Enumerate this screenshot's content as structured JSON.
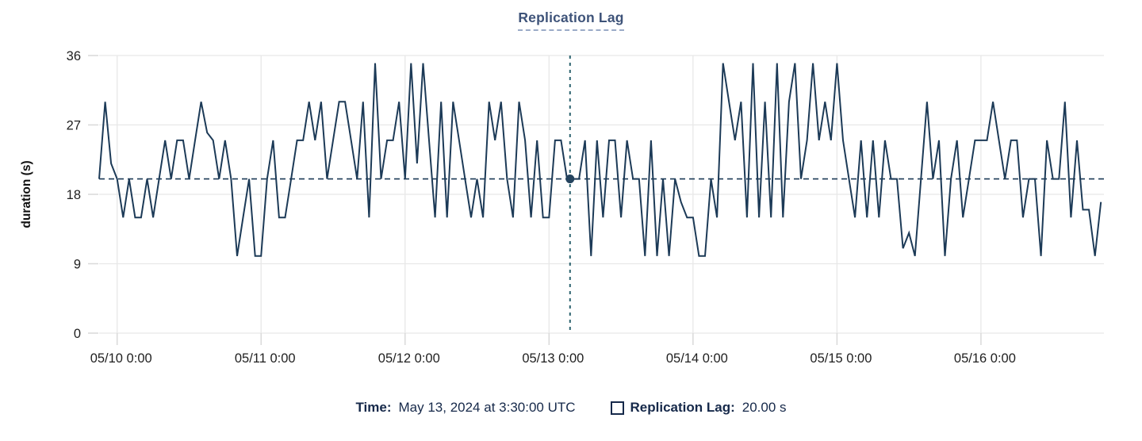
{
  "chart_data": {
    "type": "line",
    "title": "Replication Lag",
    "ylabel": "duration (s)",
    "xlabel": "",
    "ylim": [
      0,
      36
    ],
    "y_ticks": [
      0,
      9,
      18,
      27,
      36
    ],
    "x_tick_labels": [
      "05/10 0:00",
      "05/11 0:00",
      "05/12 0:00",
      "05/13 0:00",
      "05/14 0:00",
      "05/15 0:00",
      "05/16 0:00"
    ],
    "x_tick_hours": [
      0,
      24,
      48,
      72,
      96,
      120,
      144
    ],
    "x_range_hours": [
      -3,
      164.5
    ],
    "sample_interval_hours": 1,
    "grid": true,
    "legend_position": "bottom",
    "series": [
      {
        "name": "Replication Lag",
        "unit": "s",
        "start_hour": -3,
        "values": [
          20,
          30,
          22,
          20,
          15,
          20,
          15,
          15,
          20,
          15,
          20,
          25,
          20,
          25,
          25,
          20,
          25,
          30,
          26,
          25,
          20,
          25,
          20,
          10,
          15,
          20,
          10,
          10,
          20,
          25,
          15,
          15,
          20,
          25,
          25,
          30,
          25,
          30,
          20,
          25,
          30,
          30,
          25,
          20,
          30,
          15,
          35,
          20,
          25,
          25,
          30,
          20,
          35,
          22,
          35,
          25,
          15,
          30,
          15,
          30,
          25,
          20,
          15,
          20,
          15,
          30,
          25,
          30,
          20,
          15,
          30,
          25,
          15,
          25,
          15,
          15,
          25,
          25,
          20,
          20,
          20,
          25,
          10,
          25,
          15,
          25,
          25,
          15,
          25,
          20,
          20,
          10,
          25,
          10,
          20,
          10,
          20,
          17,
          15,
          15,
          10,
          10,
          20,
          15,
          35,
          30,
          25,
          30,
          15,
          35,
          15,
          30,
          15,
          35,
          15,
          30,
          35,
          20,
          25,
          35,
          25,
          30,
          25,
          35,
          25,
          20,
          15,
          25,
          15,
          25,
          15,
          25,
          20,
          20,
          11,
          13,
          10,
          20,
          30,
          20,
          25,
          10,
          20,
          25,
          15,
          20,
          25,
          25,
          25,
          30,
          25,
          20,
          25,
          25,
          15,
          20,
          20,
          10,
          25,
          20,
          20,
          30,
          15,
          25,
          16,
          16,
          10,
          17
        ]
      }
    ],
    "threshold": {
      "value": 20,
      "style": "dashed"
    },
    "crosshair": {
      "x_hour": 75.5,
      "value": 20,
      "time_label": "May 13, 2024 at 3:30:00 UTC"
    }
  },
  "legend": {
    "time_label": "Time:",
    "time_value": "May 13, 2024 at 3:30:00 UTC",
    "series_swatch_icon": "square-outline",
    "series_label": "Replication Lag:",
    "series_value": "20.00 s"
  },
  "colors": {
    "series_line": "#1c3a57",
    "threshold_line": "#1c3a57",
    "crosshair_line": "#2d6470",
    "crosshair_dot": "#24435e",
    "title_text": "#3e5379",
    "title_underline": "#9aabc7",
    "legend_text": "#16294a",
    "grid_line": "#e8e8e8",
    "tick_line": "#d9d9d9",
    "axis_text": "#1f1f1f"
  }
}
